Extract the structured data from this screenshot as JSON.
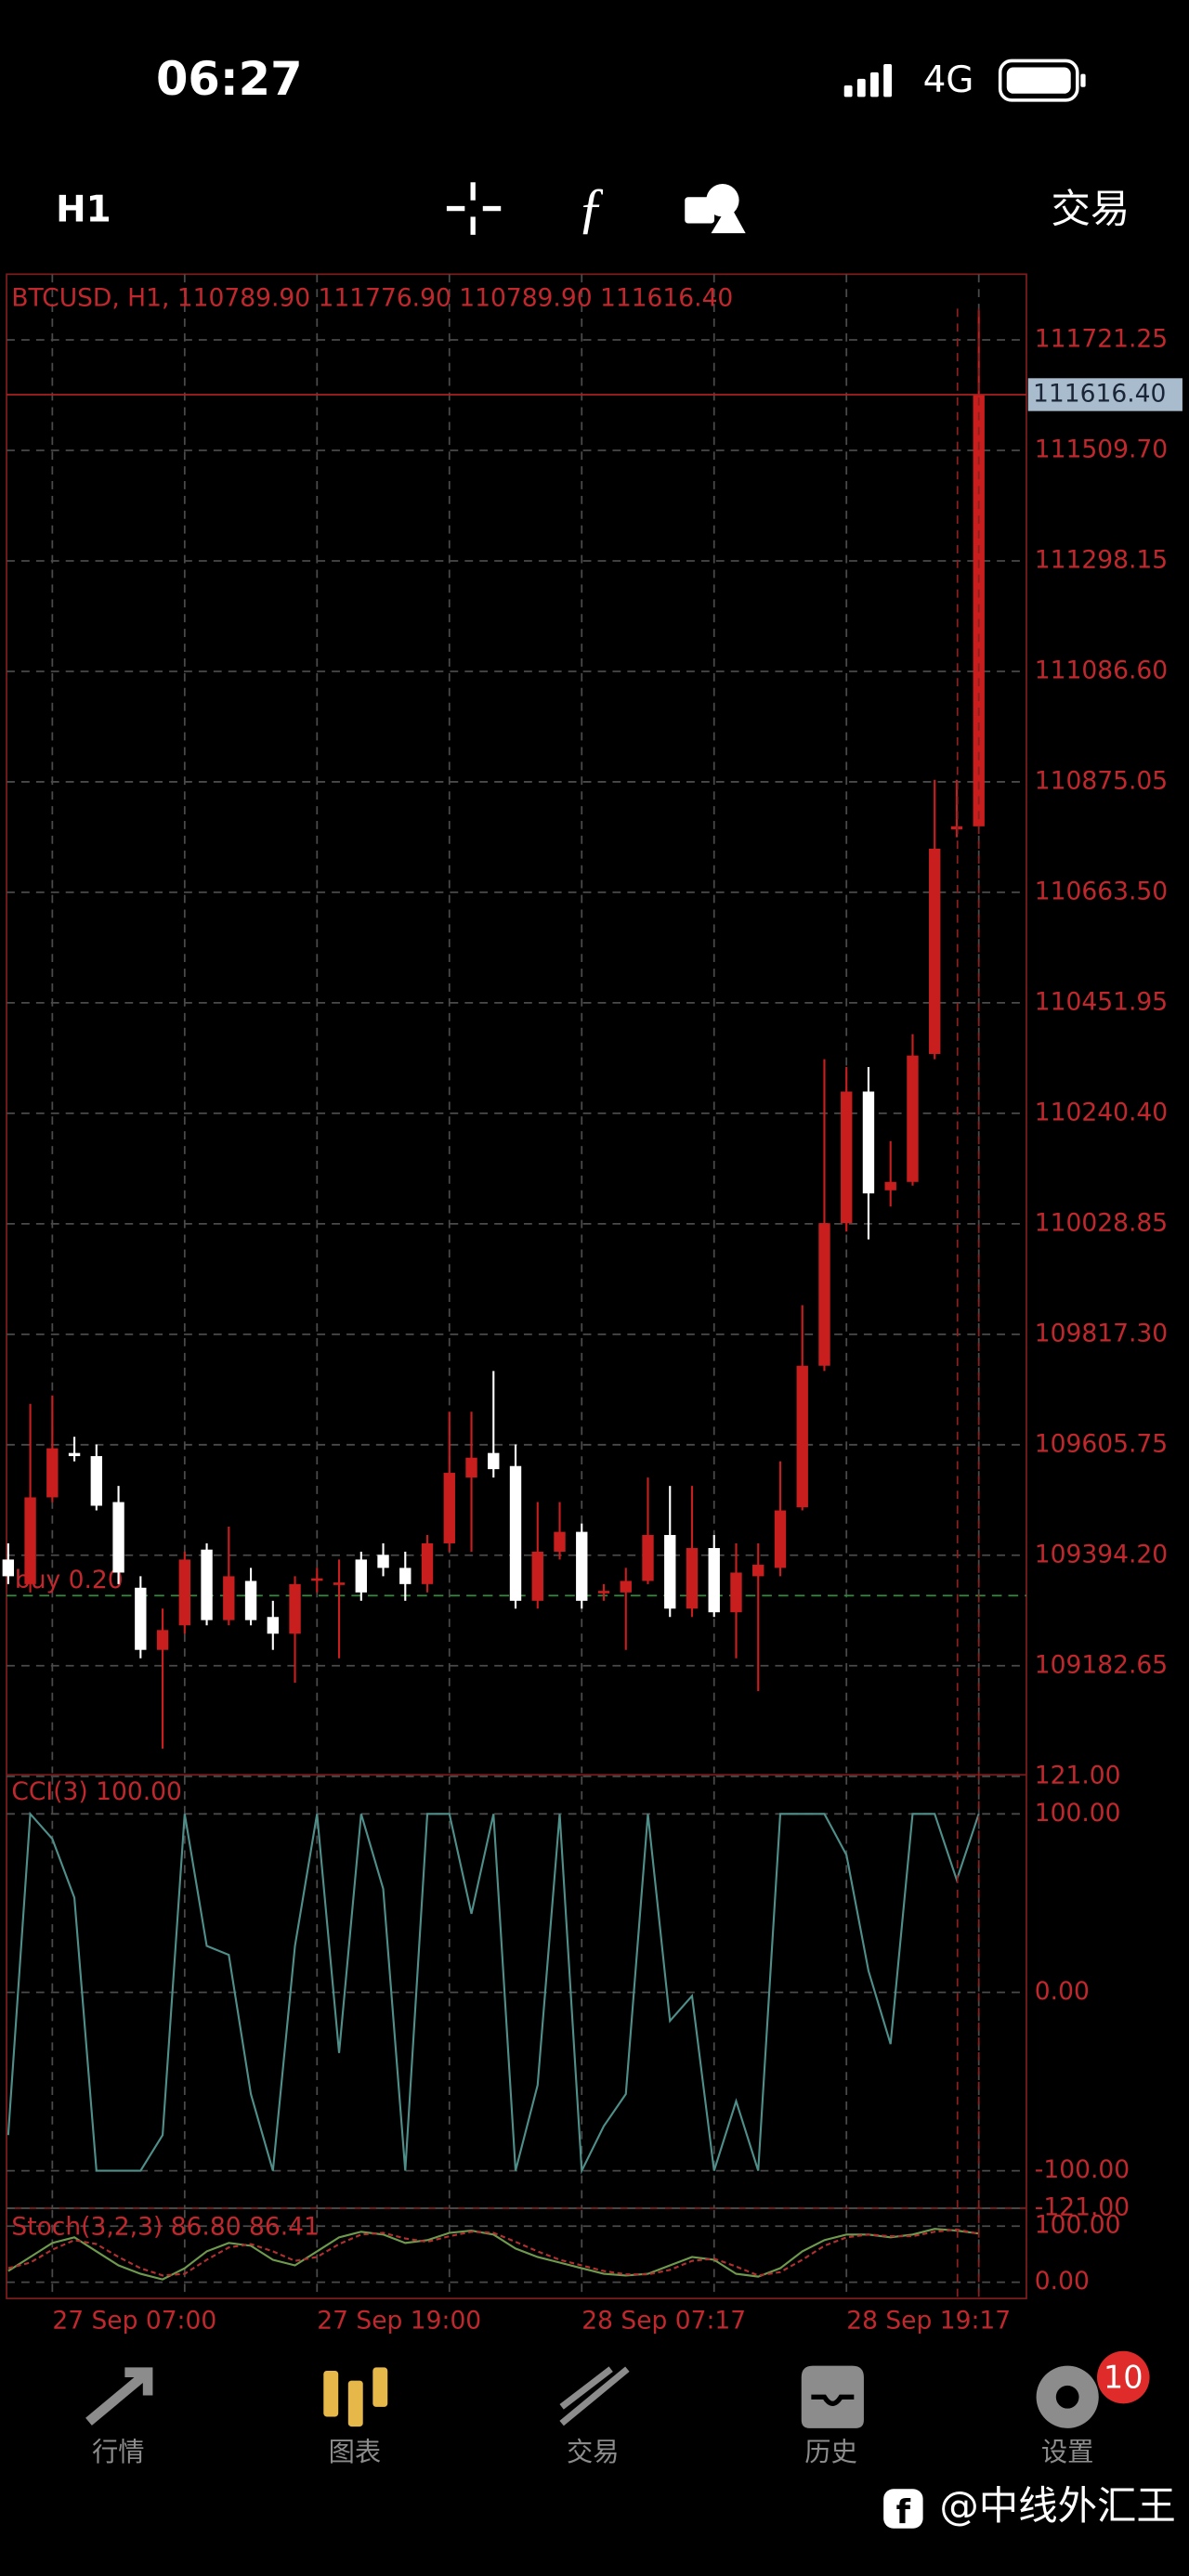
{
  "status_bar": {
    "time": "06:27",
    "network": "4G"
  },
  "toolbar": {
    "timeframe": "H1",
    "trade": "交易"
  },
  "chart_data": [
    {
      "type": "candlestick",
      "title": "BTCUSD, H1, 110789.90 111776.90 110789.90 111616.40",
      "categories": [
        null,
        null,
        "27 Sep 07:00",
        null,
        null,
        null,
        null,
        null,
        null,
        null,
        null,
        null,
        null,
        null,
        "27 Sep 19:00",
        null,
        null,
        null,
        null,
        null,
        null,
        null,
        null,
        null,
        null,
        null,
        "28 Sep 07:17",
        null,
        null,
        null,
        null,
        null,
        null,
        null,
        null,
        null,
        null,
        null,
        "28 Sep 19:17",
        null,
        null,
        null,
        null,
        null,
        null
      ],
      "open": [
        109386,
        109339,
        109505,
        109590,
        109584,
        109496,
        109332,
        109213,
        109260,
        109405,
        109270,
        109345,
        109276,
        109244,
        109348,
        109339,
        109386,
        109395,
        109370,
        109339,
        109417,
        109543,
        109590,
        109565,
        109307,
        109401,
        109439,
        109323,
        109323,
        109345,
        109433,
        109292,
        109408,
        109285,
        109354,
        109370,
        109486,
        109757,
        110030,
        110282,
        110093,
        110109,
        110354,
        110784,
        110789.9
      ],
      "high": [
        109417,
        109684,
        109700,
        109621,
        109606,
        109527,
        109354,
        109292,
        109401,
        109417,
        109449,
        109370,
        109307,
        109354,
        109370,
        109386,
        109401,
        109417,
        109401,
        109433,
        109669,
        109669,
        109747,
        109606,
        109496,
        109496,
        109455,
        109339,
        109370,
        109543,
        109527,
        109527,
        109433,
        109417,
        109417,
        109574,
        109873,
        110344,
        110329,
        110329,
        110187,
        110392,
        110879,
        110879,
        111776.9
      ],
      "low": [
        109339,
        109323,
        109496,
        109574,
        109480,
        109339,
        109197,
        109024,
        109244,
        109260,
        109260,
        109260,
        109213,
        109150,
        109323,
        109197,
        109307,
        109354,
        109307,
        109323,
        109401,
        109401,
        109543,
        109292,
        109292,
        109386,
        109292,
        109307,
        109213,
        109339,
        109276,
        109276,
        109276,
        109197,
        109134,
        109354,
        109480,
        109747,
        110014,
        109999,
        110062,
        110102,
        110344,
        110769,
        110789.9
      ],
      "close": [
        109354,
        109505,
        109599,
        109584,
        109489,
        109361,
        109213,
        109251,
        109386,
        109270,
        109354,
        109270,
        109244,
        109339,
        109350,
        109342,
        109323,
        109370,
        109339,
        109417,
        109552,
        109581,
        109559,
        109307,
        109401,
        109439,
        109307,
        109326,
        109345,
        109433,
        109292,
        109408,
        109285,
        109361,
        109376,
        109480,
        109757,
        110030,
        110282,
        110087,
        110109,
        110351,
        110747,
        110790,
        111616.4
      ],
      "up_color": "#c81e1e",
      "down_color": "#ffffff",
      "ylim": [
        108977,
        111847
      ],
      "yticks": [
        111721.25,
        {
          "value": 111509.7,
          "label": "111509.70"
        },
        111298.15,
        {
          "value": 111086.6,
          "label": "111086.60"
        },
        110875.05,
        {
          "value": 110663.5,
          "label": "110663.50"
        },
        110451.95,
        {
          "value": 110240.4,
          "label": "110240.40"
        },
        110028.85,
        {
          "value": 109817.3,
          "label": "109817.30"
        },
        109605.75,
        {
          "value": 109394.2,
          "label": "109394.20"
        },
        109182.65
      ],
      "current_price": {
        "value": 111616.4,
        "label": "111616.40"
      },
      "order_line": {
        "label": "buy 0.20",
        "value": 109317,
        "color": "#2e8b3a"
      },
      "grid": true
    },
    {
      "type": "line",
      "title": "CCI(3) 100.00",
      "color": "#4f8f8a",
      "values": [
        -80,
        100,
        86,
        53,
        -100,
        -100,
        -100,
        -80,
        100,
        26,
        21,
        -57,
        -100,
        26,
        100,
        -34,
        100,
        58,
        -100,
        100,
        100,
        44,
        100,
        -100,
        -52,
        100,
        -100,
        -75,
        -57,
        100,
        -16,
        -2,
        -100,
        -61,
        -100,
        100,
        100,
        100,
        77,
        12,
        -29,
        100,
        100,
        63,
        100
      ],
      "ylim": [
        -121,
        121
      ],
      "yticks": [
        {
          "value": 121,
          "label": "121.00"
        },
        {
          "value": 100,
          "label": "100.00"
        },
        {
          "value": 0,
          "label": "0.00"
        },
        {
          "value": -100,
          "label": "-100.00"
        },
        {
          "value": -121,
          "label": "-121.00"
        }
      ]
    },
    {
      "type": "line",
      "title": "Stoch(3,2,3) 86.80 86.41",
      "series": [
        {
          "color": "#6f9a4e",
          "values": [
            20,
            45,
            70,
            80,
            55,
            30,
            15,
            5,
            25,
            55,
            70,
            65,
            40,
            30,
            55,
            80,
            90,
            85,
            70,
            75,
            88,
            92,
            85,
            60,
            45,
            35,
            25,
            15,
            12,
            15,
            30,
            45,
            40,
            15,
            10,
            25,
            55,
            75,
            85,
            85,
            80,
            85,
            95,
            92,
            86.8
          ]
        },
        {
          "color": "#b03030",
          "values": [
            25,
            35,
            58,
            75,
            68,
            45,
            25,
            12,
            15,
            40,
            62,
            68,
            55,
            38,
            45,
            68,
            85,
            88,
            78,
            72,
            82,
            90,
            88,
            72,
            55,
            40,
            30,
            20,
            14,
            14,
            22,
            38,
            42,
            28,
            12,
            18,
            40,
            65,
            80,
            85,
            82,
            82,
            90,
            94,
            86.41
          ]
        }
      ],
      "ylim": [
        -29,
        129
      ],
      "yticks": [
        {
          "value": 100,
          "label": "100.00"
        },
        {
          "value": 0,
          "label": "0.00"
        }
      ]
    }
  ],
  "nav": [
    {
      "label": "行情"
    },
    {
      "label": "图表"
    },
    {
      "label": "交易"
    },
    {
      "label": "历史"
    },
    {
      "label": "设置"
    }
  ],
  "badge": "10",
  "watermark": "@中线外汇王"
}
